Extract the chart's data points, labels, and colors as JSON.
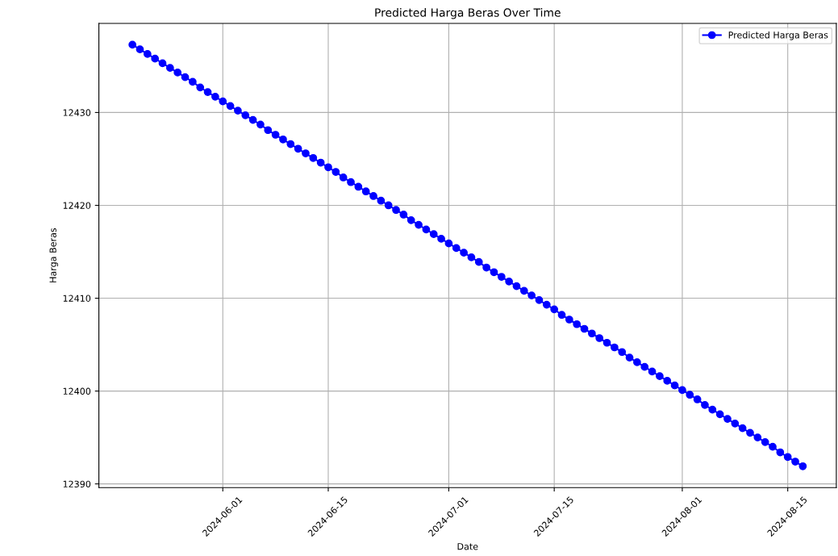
{
  "chart_data": {
    "type": "line",
    "title": "Predicted Harga Beras Over Time",
    "xlabel": "Date",
    "ylabel": "Harga Beras",
    "x": [
      "2024-05-20",
      "2024-05-21",
      "2024-05-22",
      "2024-05-23",
      "2024-05-24",
      "2024-05-25",
      "2024-05-26",
      "2024-05-27",
      "2024-05-28",
      "2024-05-29",
      "2024-05-30",
      "2024-05-31",
      "2024-06-01",
      "2024-06-02",
      "2024-06-03",
      "2024-06-04",
      "2024-06-05",
      "2024-06-06",
      "2024-06-07",
      "2024-06-08",
      "2024-06-09",
      "2024-06-10",
      "2024-06-11",
      "2024-06-12",
      "2024-06-13",
      "2024-06-14",
      "2024-06-15",
      "2024-06-16",
      "2024-06-17",
      "2024-06-18",
      "2024-06-19",
      "2024-06-20",
      "2024-06-21",
      "2024-06-22",
      "2024-06-23",
      "2024-06-24",
      "2024-06-25",
      "2024-06-26",
      "2024-06-27",
      "2024-06-28",
      "2024-06-29",
      "2024-06-30",
      "2024-07-01",
      "2024-07-02",
      "2024-07-03",
      "2024-07-04",
      "2024-07-05",
      "2024-07-06",
      "2024-07-07",
      "2024-07-08",
      "2024-07-09",
      "2024-07-10",
      "2024-07-11",
      "2024-07-12",
      "2024-07-13",
      "2024-07-14",
      "2024-07-15",
      "2024-07-16",
      "2024-07-17",
      "2024-07-18",
      "2024-07-19",
      "2024-07-20",
      "2024-07-21",
      "2024-07-22",
      "2024-07-23",
      "2024-07-24",
      "2024-07-25",
      "2024-07-26",
      "2024-07-27",
      "2024-07-28",
      "2024-07-29",
      "2024-07-30",
      "2024-07-31",
      "2024-08-01",
      "2024-08-02",
      "2024-08-03",
      "2024-08-04",
      "2024-08-05",
      "2024-08-06",
      "2024-08-07",
      "2024-08-08",
      "2024-08-09",
      "2024-08-10",
      "2024-08-11",
      "2024-08-12",
      "2024-08-13",
      "2024-08-14",
      "2024-08-15",
      "2024-08-16",
      "2024-08-17"
    ],
    "series": [
      {
        "name": "Predicted Harga Beras",
        "color": "#0000ff",
        "values": [
          12437.3,
          12436.8,
          12436.3,
          12435.8,
          12435.3,
          12434.8,
          12434.3,
          12433.8,
          12433.3,
          12432.7,
          12432.2,
          12431.7,
          12431.2,
          12430.7,
          12430.2,
          12429.7,
          12429.2,
          12428.7,
          12428.1,
          12427.6,
          12427.1,
          12426.6,
          12426.1,
          12425.6,
          12425.1,
          12424.6,
          12424.1,
          12423.6,
          12423.0,
          12422.5,
          12422.0,
          12421.5,
          12421.0,
          12420.5,
          12420.0,
          12419.5,
          12419.0,
          12418.4,
          12417.9,
          12417.4,
          12416.9,
          12416.4,
          12415.9,
          12415.4,
          12414.9,
          12414.4,
          12413.9,
          12413.3,
          12412.8,
          12412.3,
          12411.8,
          12411.3,
          12410.8,
          12410.3,
          12409.8,
          12409.3,
          12408.8,
          12408.2,
          12407.7,
          12407.2,
          12406.7,
          12406.2,
          12405.7,
          12405.2,
          12404.7,
          12404.2,
          12403.6,
          12403.1,
          12402.6,
          12402.1,
          12401.6,
          12401.1,
          12400.6,
          12400.1,
          12399.6,
          12399.1,
          12398.5,
          12398.0,
          12397.5,
          12397.0,
          12396.5,
          12396.0,
          12395.5,
          12395.0,
          12394.5,
          12394.0,
          12393.4,
          12392.9,
          12392.4,
          12391.9
        ]
      }
    ],
    "xlim": [
      "2024-05-15T13:12",
      "2024-08-21T10:48"
    ],
    "xticks": [
      "2024-06-01",
      "2024-06-15",
      "2024-07-01",
      "2024-07-15",
      "2024-08-01",
      "2024-08-15"
    ],
    "ylim": [
      12389.6,
      12439.6
    ],
    "yticks": [
      12390,
      12400,
      12410,
      12420,
      12430
    ],
    "grid": true,
    "legend": "top right",
    "marker": "circle",
    "line_style": "solid"
  }
}
